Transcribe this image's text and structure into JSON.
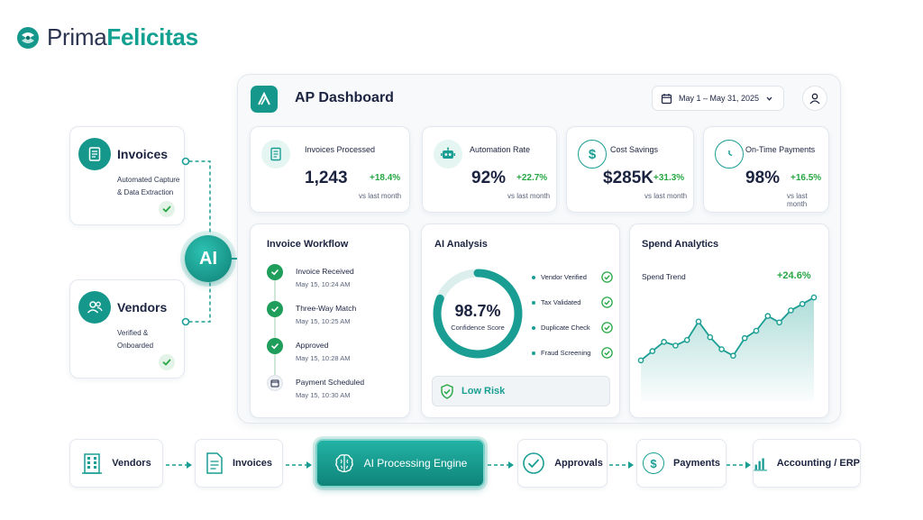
{
  "brand": {
    "name_part1": "Prima",
    "name_part2": "Felicitas"
  },
  "sources": [
    {
      "title": "Invoices",
      "desc_line1": "Automated Capture",
      "desc_line2": "& Data Extraction"
    },
    {
      "title": "Vendors",
      "desc_line1": "Verified &",
      "desc_line2": "Onboarded"
    }
  ],
  "ai_node": {
    "label": "AI"
  },
  "dashboard": {
    "title": "AP Dashboard",
    "date_range": "May 1 – May 31, 2025",
    "kpis": [
      {
        "label": "Invoices Processed",
        "value": "1,243",
        "delta": "+18.4%",
        "sub": "vs last month",
        "icon": "document-icon"
      },
      {
        "label": "Automation Rate",
        "value": "92%",
        "delta": "+22.7%",
        "sub": "vs last month",
        "icon": "robot-icon"
      },
      {
        "label": "Cost Savings",
        "value": "$285K",
        "delta": "+31.3%",
        "sub": "vs last month",
        "icon": "dollar-icon"
      },
      {
        "label": "On-Time Payments",
        "value": "98%",
        "delta": "+16.5%",
        "sub": "vs last month",
        "icon": "clock-icon"
      }
    ],
    "workflow": {
      "title": "Invoice Workflow",
      "steps": [
        {
          "label": "Invoice Received",
          "time": "May 15, 10:24 AM",
          "status": "done"
        },
        {
          "label": "Three-Way Match",
          "time": "May 15, 10:25 AM",
          "status": "done"
        },
        {
          "label": "Approved",
          "time": "May 15, 10:28 AM",
          "status": "done"
        },
        {
          "label": "Payment Scheduled",
          "time": "May 15, 10:30 AM",
          "status": "scheduled"
        }
      ]
    },
    "ai_analysis": {
      "title": "AI Analysis",
      "score": "98.7%",
      "score_value": 98.7,
      "score_label": "Confidence Score",
      "checks": [
        "Vendor Verified",
        "Tax Validated",
        "Duplicate Check",
        "Fraud Screening"
      ],
      "risk": "Low Risk"
    },
    "spend": {
      "title": "Spend Analytics",
      "trend_label": "Spend Trend",
      "trend_delta": "+24.6%",
      "series": [
        3,
        4,
        5,
        4.6,
        5.2,
        7.2,
        5.5,
        4.2,
        3.5,
        5.4,
        6.2,
        7.8,
        7.1,
        8.4,
        9.1,
        9.8
      ]
    }
  },
  "flow": [
    "Vendors",
    "Invoices",
    "AI Processing Engine",
    "Approvals",
    "Payments",
    "Accounting / ERP"
  ],
  "colors": {
    "teal": "#1a9e93",
    "green": "#27a743",
    "navy": "#1b2340"
  }
}
